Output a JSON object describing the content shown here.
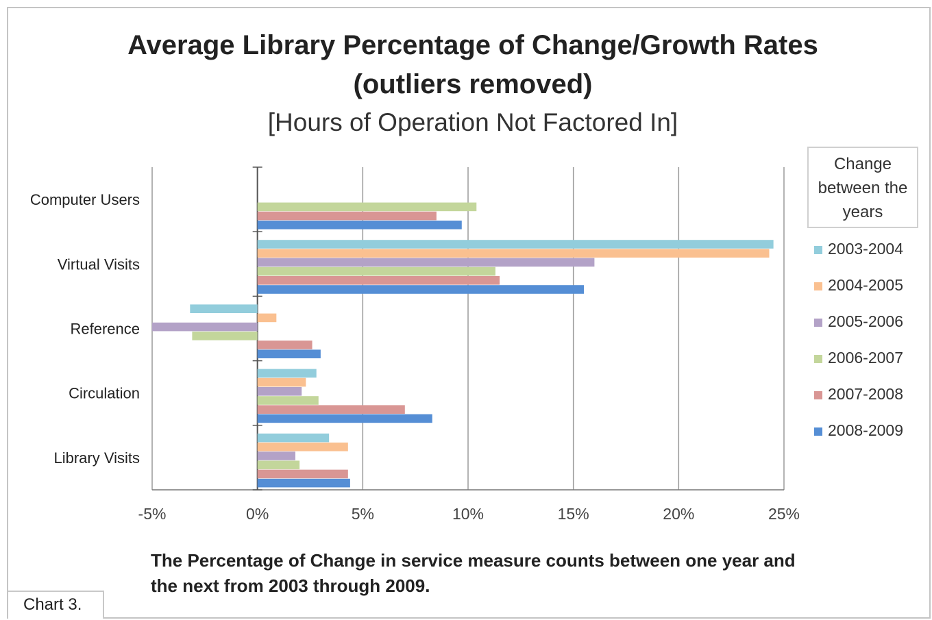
{
  "chart_data": {
    "type": "bar",
    "orientation": "horizontal",
    "title": "Average Library Percentage of Change/Growth Rates",
    "title_line2": "(outliers removed)",
    "subtitle": "[Hours of Operation Not Factored In]",
    "categories": [
      "Computer Users",
      "Virtual Visits",
      "Reference",
      "Circulation",
      "Library Visits"
    ],
    "series": [
      {
        "name": "2003-2004",
        "color": "#92cddc",
        "values": [
          null,
          24.5,
          -3.2,
          2.8,
          3.4
        ]
      },
      {
        "name": "2004-2005",
        "color": "#fac090",
        "values": [
          null,
          24.3,
          0.9,
          2.3,
          4.3
        ]
      },
      {
        "name": "2005-2006",
        "color": "#b3a2c7",
        "values": [
          null,
          16.0,
          -5.0,
          2.1,
          1.8
        ]
      },
      {
        "name": "2006-2007",
        "color": "#c3d69b",
        "values": [
          10.4,
          11.3,
          -3.1,
          2.9,
          2.0
        ]
      },
      {
        "name": "2007-2008",
        "color": "#d99694",
        "values": [
          8.5,
          11.5,
          2.6,
          7.0,
          4.3
        ]
      },
      {
        "name": "2008-2009",
        "color": "#558ed5",
        "values": [
          9.7,
          15.5,
          3.0,
          8.3,
          4.4
        ]
      }
    ],
    "xlim": [
      -5,
      25
    ],
    "x_ticks": [
      "-5%",
      "0%",
      "5%",
      "10%",
      "15%",
      "20%",
      "25%"
    ],
    "x_tick_values": [
      -5,
      0,
      5,
      10,
      15,
      20,
      25
    ],
    "grid": true,
    "legend_title": "Change between the years",
    "legend_position": "right"
  },
  "caption": "The Percentage of Change in service measure counts between one year and the next from 2003 through 2009.",
  "chart_label": "Chart 3."
}
